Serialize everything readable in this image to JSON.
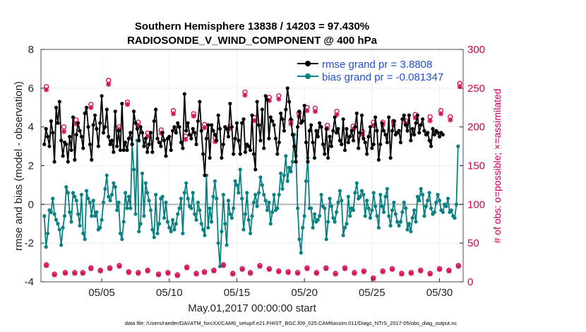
{
  "chart_data": {
    "type": "line",
    "title_line1": "Southern Hemisphere 13838 / 14203 = 97.430%",
    "title_line2": "RADIOSONDE_V_WIND_COMPONENT @ 400 hPa",
    "xlabel": "May.01,2017 00:00:00 start",
    "ylabel": "rmse and bias (model - observation)",
    "y2label": "# of obs: o=possible; ×=assimilated",
    "xlim": [
      0.5,
      31.75
    ],
    "ylim": [
      -4,
      8
    ],
    "y2lim": [
      0,
      300
    ],
    "xtick_values": [
      5,
      10,
      15,
      20,
      25,
      30
    ],
    "xtick_labels": [
      "05/05",
      "05/10",
      "05/15",
      "05/20",
      "05/25",
      "05/30"
    ],
    "yticks": [
      -4,
      -2,
      0,
      2,
      4,
      6,
      8
    ],
    "y2ticks": [
      0,
      50,
      100,
      150,
      200,
      250,
      300
    ],
    "footnote": "data file: /Users/raeder/DAI/ATM_forcXX/CAM6_setup/f.e21.FHIST_BGC.f09_025.CAM6assim.011/Diags_NTrS_2017-05/obs_diag_output.nc",
    "legend": [
      "rmse grand pr = 3.8808",
      "bias grand pr = -0.081347"
    ],
    "colors": {
      "rmse": "#000000",
      "bias": "#0a8080",
      "obs": "#d4145a",
      "zero": "#b4b4b4"
    },
    "series": [
      {
        "name": "rmse",
        "values": [
          3.1,
          3.9,
          3.5,
          3.0,
          4.3,
          3.7,
          2.2,
          5.0,
          4.2,
          5.3,
          3.3,
          2.5,
          3.2,
          3.1,
          2.2,
          3.5,
          2.8,
          4.5,
          2.3,
          3.6,
          4.2,
          3.8,
          3.5,
          2.9,
          4.7,
          5.0,
          4.0,
          3.1,
          2.3,
          4.1,
          4.6,
          3.9,
          3.0,
          4.2,
          5.6,
          3.7,
          4.0,
          4.9,
          3.5,
          3.1,
          3.3,
          2.7,
          4.8,
          3.0,
          3.8,
          2.8,
          5.2,
          2.8,
          3.2,
          2.8,
          3.4,
          3.7,
          3.1,
          4.8,
          4.2,
          3.9,
          3.3,
          4.0,
          3.7,
          3.0,
          3.4,
          2.7,
          3.1,
          3.7,
          2.7,
          4.3,
          4.9,
          3.4,
          3.2,
          3.0,
          3.7,
          3.3,
          2.5,
          3.4,
          3.5,
          2.8,
          3.8,
          4.0,
          3.7,
          4.2,
          4.0,
          3.2,
          2.9,
          5.7,
          3.8,
          4.2,
          3.6,
          3.4,
          3.9,
          3.7,
          3.1,
          4.3,
          5.3,
          3.8,
          2.6,
          1.5,
          3.4,
          4.1,
          2.4,
          4.1,
          3.8,
          3.6,
          3.3,
          4.6,
          3.9,
          2.4,
          3.1,
          4.0,
          3.9,
          3.5,
          5.2,
          4.0,
          2.6,
          3.4,
          4.2,
          3.3,
          2.6,
          4.2,
          4.4,
          2.7,
          3.1,
          3.0,
          2.8,
          4.6,
          2.6,
          1.8,
          5.3,
          4.1,
          3.3,
          4.9,
          2.9,
          5.6,
          5.4,
          3.4,
          4.5,
          4.3,
          4.1,
          3.4,
          2.6,
          3.2,
          4.7,
          4.4,
          3.8,
          4.9,
          6.0,
          5.3,
          4.4,
          3.6,
          3.0,
          2.2,
          4.0,
          4.8,
          4.2,
          4.3,
          5.1,
          3.2,
          2.2,
          3.8,
          4.1,
          3.2,
          2.4,
          3.8,
          3.5,
          4.2,
          4.0,
          3.1,
          2.6,
          3.9,
          2.4,
          3.5,
          3.0,
          3.8,
          4.5,
          3.7,
          3.9,
          3.3,
          3.1,
          4.4,
          2.8,
          3.9,
          3.2,
          3.5,
          3.8,
          3.3,
          4.0,
          4.7,
          2.9,
          3.7,
          4.6,
          3.4,
          3.2,
          2.6,
          3.5,
          4.0,
          2.9,
          3.1,
          4.5,
          3.8,
          2.3,
          3.1,
          4.2,
          3.8,
          3.6,
          3.2,
          4.5,
          2.4,
          3.8,
          4.3,
          3.6,
          3.7,
          3.8,
          3.2,
          4.4,
          4.6,
          4.1,
          3.8,
          4.6,
          3.3,
          3.9,
          3.6,
          4.2,
          4.6,
          3.7,
          4.1,
          4.4,
          3.8,
          3.6,
          3.7,
          3.3,
          3.0,
          3.9,
          3.6,
          3.8,
          3.7,
          3.5,
          3.7,
          3.6
        ]
      },
      {
        "name": "bias",
        "values": [
          -0.6,
          -2.2,
          -1.5,
          -0.3,
          -0.4,
          0.3,
          -0.5,
          -0.8,
          -1.0,
          -1.3,
          -2.1,
          -1.2,
          -0.6,
          0.9,
          0.6,
          -0.4,
          -0.9,
          0.6,
          0.4,
          0.2,
          -0.5,
          -1.1,
          0.5,
          -1.5,
          -1.8,
          0.7,
          0.3,
          0.1,
          -0.6,
          0.2,
          -0.6,
          -0.4,
          -1.3,
          -1.2,
          -0.8,
          0.1,
          0.8,
          1.5,
          0.4,
          0.2,
          0.5,
          1.1,
          0.9,
          -0.3,
          0.1,
          -1.5,
          -1.8,
          -0.9,
          0.6,
          -0.2,
          0.4,
          -0.2,
          3.1,
          1.8,
          -0.5,
          3.3,
          -1.4,
          -1.0,
          1.6,
          -0.6,
          1.1,
          0.6,
          0.2,
          -0.3,
          -1.3,
          -1.7,
          0.5,
          -1.5,
          -1.0,
          0.3,
          0.4,
          -0.7,
          0.1,
          -0.9,
          -1.2,
          -1.4,
          -0.8,
          -1.3,
          -1.0,
          -0.5,
          -0.2,
          0.3,
          -1.5,
          0.6,
          1.1,
          0.3,
          -0.1,
          -0.2,
          0.6,
          -0.5,
          -0.8,
          0.1,
          -0.3,
          -1.0,
          -1.3,
          -1.6,
          1.5,
          -1.2,
          -0.2,
          -0.9,
          0.4,
          1.2,
          0.3,
          -2.0,
          -3.2,
          -1.4,
          0.5,
          -1.0,
          -2.1,
          0.2,
          -0.5,
          -0.7,
          -0.2,
          1.2,
          1.0,
          0.6,
          1.8,
          0.3,
          -1.3,
          -0.5,
          0.6,
          -0.8,
          -1.5,
          -0.6,
          0.1,
          0.5,
          -0.1,
          0.6,
          1.4,
          1.0,
          0.5,
          0.2,
          -0.3,
          0.1,
          -1.0,
          -0.4,
          0.5,
          -0.3,
          -0.2,
          0.5,
          1.6,
          0.8,
          1.5,
          2.5,
          1.2,
          1.9,
          1.7,
          2.2,
          3.6,
          2.5,
          -0.2,
          -1.8,
          -2.5,
          -1.2,
          -0.6,
          1.2,
          2.4,
          -0.2,
          -0.2,
          -1.2,
          -0.5,
          -0.9,
          -0.8,
          -0.6,
          0.5,
          -0.1,
          -0.2,
          -1.8,
          -0.9,
          0.3,
          -0.1,
          -0.7,
          -0.9,
          -0.4,
          0.1,
          0.7,
          0.2,
          -1.6,
          -1.2,
          -1.0,
          0.4,
          -0.6,
          -0.2,
          -0.3,
          0.6,
          1.1,
          0.3,
          0.4,
          0.7,
          0.5,
          -0.6,
          0.2,
          -0.2,
          -0.7,
          -0.3,
          0.6,
          -0.1,
          -0.6,
          -1.2,
          0.5,
          -0.1,
          -0.4,
          0.4,
          0.8,
          -0.6,
          -1.1,
          -0.3,
          0.1,
          -0.5,
          -0.9,
          -1.1,
          -0.9,
          -0.4,
          0.1,
          -0.2,
          -1.3,
          -1.0,
          -1.4,
          -0.7,
          -0.3,
          -0.9,
          0.4,
          0.2,
          0.8,
          0.5,
          -0.6,
          -0.1,
          0.2,
          0.6,
          -0.2,
          -0.5,
          -0.4,
          0.1,
          0.5,
          0.2,
          -0.3,
          -0.4,
          0.0,
          -0.1,
          0.3,
          -0.4,
          -0.3,
          -0.6,
          -0.7,
          0.0,
          3.0
        ]
      },
      {
        "name": "obs_possible_top",
        "x": [
          0.9,
          2.2,
          3.1,
          4.2,
          5.5,
          6.3,
          6.9,
          7.7,
          8.4,
          9.4,
          10.3,
          11.2,
          11.8,
          12.6,
          13.4,
          14.5,
          15.6,
          16.3,
          17.4,
          18.1,
          19.0,
          19.6,
          20.2,
          20.8,
          21.7,
          22.4,
          23.6,
          24.3,
          25.1,
          25.8,
          26.6,
          27.5,
          28.2,
          29.3,
          30.1,
          30.8,
          31.5
        ],
        "values": [
          252,
          200,
          209,
          229,
          260,
          200,
          232,
          206,
          192,
          196,
          221,
          188,
          217,
          203,
          186,
          201,
          245,
          212,
          238,
          240,
          208,
          218,
          225,
          224,
          202,
          220,
          201,
          194,
          206,
          206,
          207,
          208,
          216,
          213,
          221,
          213,
          256
        ]
      },
      {
        "name": "obs_assim_top",
        "x": [
          0.9,
          2.2,
          3.1,
          4.2,
          5.5,
          6.3,
          6.9,
          7.7,
          8.4,
          9.4,
          10.3,
          11.2,
          11.8,
          12.6,
          13.4,
          14.5,
          15.6,
          16.3,
          17.4,
          18.1,
          19.0,
          19.6,
          20.2,
          20.8,
          21.7,
          22.4,
          23.6,
          24.3,
          25.1,
          25.8,
          26.6,
          27.5,
          28.2,
          29.3,
          30.1,
          30.8,
          31.5
        ],
        "values": [
          248,
          194,
          204,
          225,
          255,
          197,
          229,
          202,
          188,
          192,
          217,
          184,
          214,
          199,
          181,
          198,
          241,
          208,
          234,
          236,
          204,
          214,
          221,
          220,
          198,
          216,
          197,
          190,
          202,
          203,
          203,
          204,
          212,
          208,
          217,
          209,
          252
        ]
      },
      {
        "name": "obs_possible_bottom",
        "x": [
          0.9,
          1.5,
          2.3,
          3.0,
          3.6,
          4.2,
          4.9,
          5.6,
          6.3,
          7.0,
          7.7,
          8.4,
          9.2,
          9.9,
          10.6,
          11.3,
          12.0,
          12.6,
          13.3,
          14.0,
          14.7,
          15.4,
          16.0,
          16.7,
          17.4,
          18.1,
          18.8,
          19.5,
          20.2,
          20.9,
          21.6,
          22.3,
          23.0,
          23.7,
          24.4,
          25.1,
          25.8,
          26.5,
          27.2,
          27.9,
          28.6,
          29.3,
          30.0,
          30.7,
          31.4
        ],
        "values": [
          22,
          10,
          12,
          12,
          12,
          18,
          15,
          18,
          21,
          13,
          12,
          15,
          10,
          12,
          9,
          19,
          11,
          13,
          15,
          22,
          11,
          17,
          12,
          21,
          17,
          14,
          13,
          12,
          18,
          12,
          18,
          11,
          18,
          12,
          14,
          5,
          14,
          17,
          11,
          12,
          15,
          11,
          17,
          15,
          21
        ]
      },
      {
        "name": "obs_assim_bottom",
        "x": [
          0.9,
          1.5,
          2.3,
          3.0,
          3.6,
          4.2,
          4.9,
          5.6,
          6.3,
          7.0,
          7.7,
          8.4,
          9.2,
          9.9,
          10.6,
          11.3,
          12.0,
          12.6,
          13.3,
          14.0,
          14.7,
          15.4,
          16.0,
          16.7,
          17.4,
          18.1,
          18.8,
          19.5,
          20.2,
          20.9,
          21.6,
          22.3,
          23.0,
          23.7,
          24.4,
          25.1,
          25.8,
          26.5,
          27.2,
          27.9,
          28.6,
          29.3,
          30.0,
          30.7,
          31.4
        ],
        "values": [
          21,
          9,
          11,
          11,
          11,
          17,
          14,
          17,
          20,
          12,
          11,
          14,
          9,
          11,
          8,
          18,
          10,
          12,
          14,
          21,
          10,
          16,
          11,
          20,
          16,
          13,
          12,
          11,
          17,
          11,
          17,
          10,
          17,
          11,
          13,
          4,
          13,
          16,
          10,
          11,
          14,
          10,
          16,
          14,
          20
        ]
      }
    ]
  }
}
